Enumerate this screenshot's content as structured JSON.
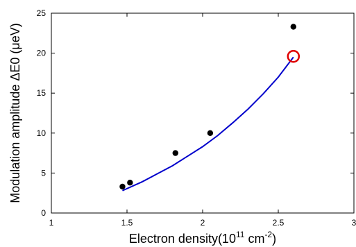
{
  "chart_data": {
    "type": "scatter",
    "title": "",
    "xlabel": {
      "main": "Electron density(10",
      "exp1": "11",
      "mid": " cm",
      "exp2": "-2",
      "end": ")"
    },
    "ylabel": "Modulation amplitude ΔE0 (μeV)",
    "xlim": [
      1,
      3
    ],
    "ylim": [
      0,
      25
    ],
    "xticks": [
      1,
      1.5,
      2,
      2.5,
      3
    ],
    "xtick_labels": [
      "1",
      "1.5",
      "2",
      "2.5",
      "3"
    ],
    "yticks": [
      0,
      5,
      10,
      15,
      20,
      25
    ],
    "ytick_labels": [
      "0",
      "5",
      "10",
      "15",
      "20",
      "25"
    ],
    "grid": false,
    "series": [
      {
        "kind": "points",
        "color": "#000000",
        "x": [
          1.47,
          1.52,
          1.82,
          2.05,
          2.6
        ],
        "y": [
          3.3,
          3.8,
          7.5,
          10.0,
          23.3
        ]
      },
      {
        "kind": "line",
        "color": "#0000cc",
        "x": [
          1.47,
          1.6,
          1.7,
          1.8,
          1.9,
          2.0,
          2.1,
          2.2,
          2.3,
          2.4,
          2.5,
          2.6
        ],
        "y": [
          2.8,
          3.9,
          4.9,
          5.9,
          7.1,
          8.3,
          9.7,
          11.3,
          13.0,
          14.9,
          17.0,
          19.5
        ]
      }
    ],
    "highlight": {
      "x": 2.6,
      "y": 19.6,
      "color": "#e00000"
    }
  }
}
